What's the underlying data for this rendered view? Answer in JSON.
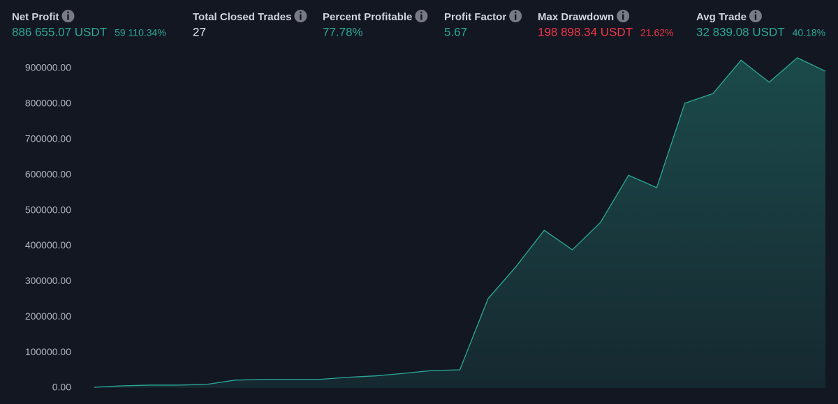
{
  "stats": [
    {
      "label": "Net Profit",
      "value": "886 655.07 USDT",
      "percent": "59 110.34%",
      "color": "#2aa996"
    },
    {
      "label": "Total Closed Trades",
      "value": "27",
      "color": "#e6e8ee"
    },
    {
      "label": "Percent Profitable",
      "value": "77.78%",
      "color": "#2aa996"
    },
    {
      "label": "Profit Factor",
      "value": "5.67",
      "color": "#2aa996"
    },
    {
      "label": "Max Drawdown",
      "value": "198 898.34 USDT",
      "percent": "21.62%",
      "color": "#f23645"
    },
    {
      "label": "Avg Trade",
      "value": "32 839.08 USDT",
      "percent": "40.18%",
      "color": "#2aa996"
    }
  ],
  "chart_data": {
    "type": "area",
    "color": "#2aa996",
    "values": [
      2000,
      6000,
      8000,
      8000,
      10000,
      22000,
      24000,
      24000,
      24000,
      30000,
      34000,
      41000,
      49000,
      51000,
      251000,
      342000,
      444000,
      389000,
      466000,
      599000,
      564000,
      802000,
      829000,
      923000,
      861000,
      930000,
      892000
    ],
    "ylim": [
      0,
      950000
    ],
    "yticks": [
      {
        "value": 0,
        "label": "0.00"
      },
      {
        "value": 100000,
        "label": "100000.00"
      },
      {
        "value": 200000,
        "label": "200000.00"
      },
      {
        "value": 300000,
        "label": "300000.00"
      },
      {
        "value": 400000,
        "label": "400000.00"
      },
      {
        "value": 500000,
        "label": "500000.00"
      },
      {
        "value": 600000,
        "label": "600000.00"
      },
      {
        "value": 700000,
        "label": "700000.00"
      },
      {
        "value": 800000,
        "label": "800000.00"
      },
      {
        "value": 900000,
        "label": "900000.00"
      }
    ]
  }
}
